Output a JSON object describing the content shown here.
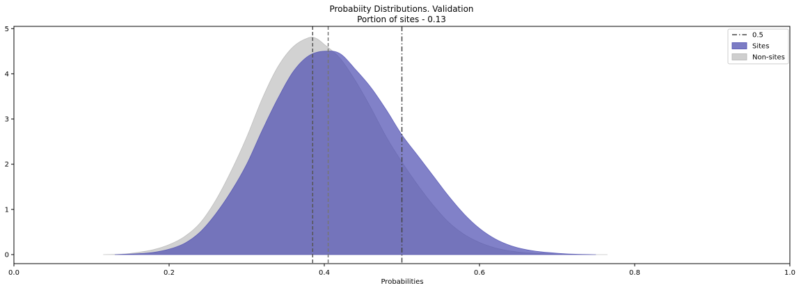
{
  "chart_data": {
    "type": "area",
    "title": "Probabiity Distributions. Validation",
    "subtitle": "Portion of sites - 0.13",
    "xlabel": "Probabilities",
    "ylabel": "",
    "xlim": [
      0.0,
      1.0
    ],
    "ylim": [
      -0.2,
      5.05
    ],
    "xticks": [
      "0.0",
      "0.2",
      "0.4",
      "0.6",
      "0.8",
      "1.0"
    ],
    "yticks": [
      "0",
      "1",
      "2",
      "3",
      "4",
      "5"
    ],
    "grid": false,
    "legend_position": "top-right",
    "series": [
      {
        "name": "Non-sites",
        "color": "#b4b4b4",
        "opacity": 0.6,
        "x": [
          0.115,
          0.14,
          0.16,
          0.18,
          0.2,
          0.22,
          0.24,
          0.26,
          0.28,
          0.3,
          0.32,
          0.34,
          0.36,
          0.38,
          0.39,
          0.4,
          0.42,
          0.44,
          0.46,
          0.48,
          0.5,
          0.52,
          0.54,
          0.56,
          0.58,
          0.6,
          0.62,
          0.64,
          0.66,
          0.7,
          0.74,
          0.765
        ],
        "y": [
          0,
          0.01,
          0.05,
          0.11,
          0.22,
          0.4,
          0.7,
          1.2,
          1.85,
          2.6,
          3.45,
          4.15,
          4.6,
          4.8,
          4.78,
          4.65,
          4.35,
          3.85,
          3.25,
          2.6,
          2.05,
          1.55,
          1.1,
          0.72,
          0.45,
          0.27,
          0.15,
          0.08,
          0.04,
          0.01,
          0,
          0
        ]
      },
      {
        "name": "Sites",
        "color": "#4c4cb0",
        "opacity": 0.7,
        "x": [
          0.13,
          0.16,
          0.18,
          0.2,
          0.22,
          0.24,
          0.26,
          0.28,
          0.3,
          0.32,
          0.34,
          0.36,
          0.38,
          0.4,
          0.42,
          0.44,
          0.46,
          0.48,
          0.5,
          0.52,
          0.54,
          0.56,
          0.58,
          0.6,
          0.62,
          0.64,
          0.66,
          0.68,
          0.7,
          0.72,
          0.75
        ],
        "y": [
          0,
          0.02,
          0.05,
          0.12,
          0.25,
          0.5,
          0.9,
          1.4,
          2.0,
          2.75,
          3.45,
          4.05,
          4.4,
          4.5,
          4.45,
          4.1,
          3.7,
          3.2,
          2.65,
          2.2,
          1.75,
          1.3,
          0.9,
          0.58,
          0.35,
          0.2,
          0.11,
          0.06,
          0.03,
          0.01,
          0
        ]
      }
    ],
    "vlines": [
      {
        "x": 0.385,
        "style": "dashed",
        "color": "#555555"
      },
      {
        "x": 0.405,
        "style": "dashed",
        "color": "#777777"
      },
      {
        "x": 0.5,
        "style": "dashdot",
        "color": "#444444",
        "label": "0.5"
      }
    ],
    "legend": [
      {
        "label": "0.5",
        "kind": "dashdot",
        "color": "#444444"
      },
      {
        "label": "Sites",
        "kind": "patch",
        "color": "#7c7cc4"
      },
      {
        "label": "Non-sites",
        "kind": "patch",
        "color": "#cfcfcf"
      }
    ]
  }
}
